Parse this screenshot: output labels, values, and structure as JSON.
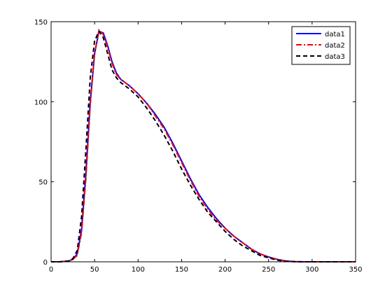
{
  "chart_data": {
    "type": "line",
    "title": "",
    "xlabel": "",
    "ylabel": "",
    "xlim": [
      0,
      350
    ],
    "ylim": [
      0,
      150
    ],
    "xticks": [
      "0",
      "50",
      "100",
      "150",
      "200",
      "250",
      "300",
      "350"
    ],
    "yticks": [
      "0",
      "50",
      "100",
      "150"
    ],
    "grid": false,
    "legend_position": "top-right",
    "x": [
      0,
      10,
      20,
      25,
      30,
      35,
      40,
      45,
      50,
      55,
      60,
      65,
      70,
      75,
      80,
      90,
      100,
      110,
      120,
      130,
      140,
      150,
      160,
      170,
      180,
      190,
      200,
      210,
      220,
      230,
      240,
      250,
      260,
      270,
      280,
      290,
      300,
      310,
      320,
      330,
      340,
      350
    ],
    "series": [
      {
        "name": "data1",
        "color": "#0000ff",
        "style": "solid",
        "values": [
          0,
          0,
          0.5,
          1.5,
          5,
          20,
          55,
          100,
          130,
          144,
          143,
          135,
          125,
          118,
          114,
          110,
          105,
          99,
          92,
          84,
          74,
          63,
          52,
          42,
          34,
          27,
          21,
          16,
          12,
          8,
          5,
          3,
          1.5,
          0.5,
          0.1,
          0,
          0,
          0,
          0,
          0,
          0,
          0
        ]
      },
      {
        "name": "data2",
        "color": "#ff0000",
        "style": "dashdot",
        "values": [
          0,
          0,
          0.5,
          1.5,
          4,
          18,
          52,
          98,
          130,
          145,
          142,
          134,
          124,
          117,
          114,
          110,
          105,
          99,
          91,
          83,
          73,
          62,
          51,
          41,
          33,
          26,
          21,
          16,
          12,
          8,
          5,
          3,
          1.5,
          0.5,
          0.1,
          0,
          0,
          0,
          0,
          0,
          0,
          0
        ]
      },
      {
        "name": "data3",
        "color": "#000000",
        "style": "dashed",
        "values": [
          0,
          0,
          0.5,
          2,
          7,
          28,
          70,
          115,
          138,
          144,
          140,
          130,
          120,
          115,
          112,
          108,
          103,
          96,
          88,
          79,
          69,
          58,
          48,
          39,
          31,
          25,
          19,
          14,
          10,
          7,
          4,
          2.5,
          1,
          0.3,
          0.1,
          0,
          0,
          0,
          0,
          0,
          0,
          0
        ]
      }
    ]
  }
}
